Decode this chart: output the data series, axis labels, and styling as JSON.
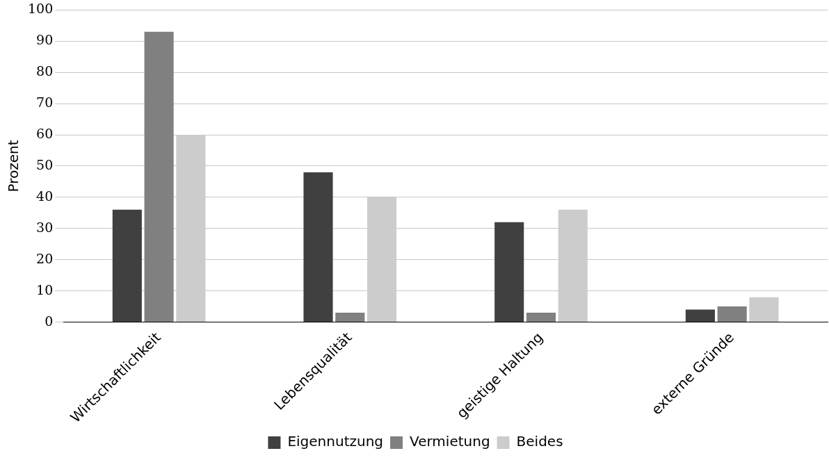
{
  "chart_data": {
    "type": "bar",
    "ylabel": "Prozent",
    "categories": [
      "Wirtschaftlichkeit",
      "Lebensqualität",
      "geistige Haltung",
      "externe Gründe"
    ],
    "series": [
      {
        "name": "Eigennutzung",
        "color": "#404040",
        "values": [
          36,
          48,
          32,
          4
        ]
      },
      {
        "name": "Vermietung",
        "color": "#808080",
        "values": [
          93,
          3,
          3,
          5
        ]
      },
      {
        "name": "Beides",
        "color": "#cccccc",
        "values": [
          60,
          40,
          36,
          8
        ]
      }
    ],
    "ylim": [
      0,
      100
    ],
    "yticks": [
      0,
      10,
      20,
      30,
      40,
      50,
      60,
      70,
      80,
      90,
      100
    ],
    "grid": "y",
    "legend": "bottom"
  }
}
